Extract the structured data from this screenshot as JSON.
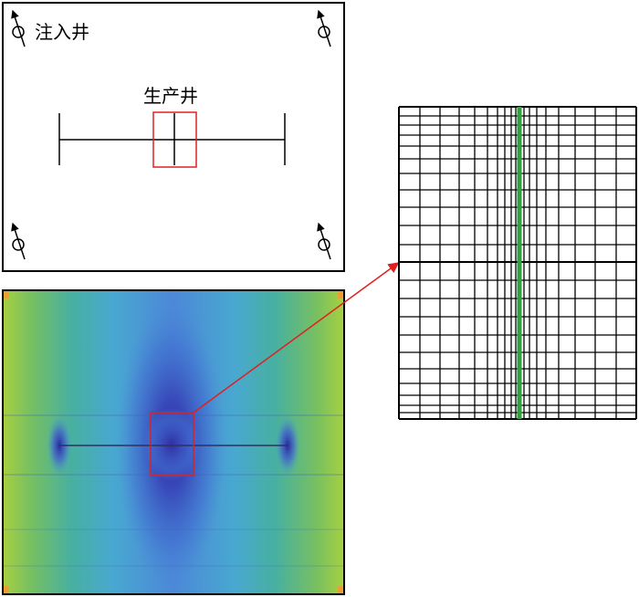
{
  "labels": {
    "injection_well": "注入井",
    "production_well": "生产井"
  }
}
